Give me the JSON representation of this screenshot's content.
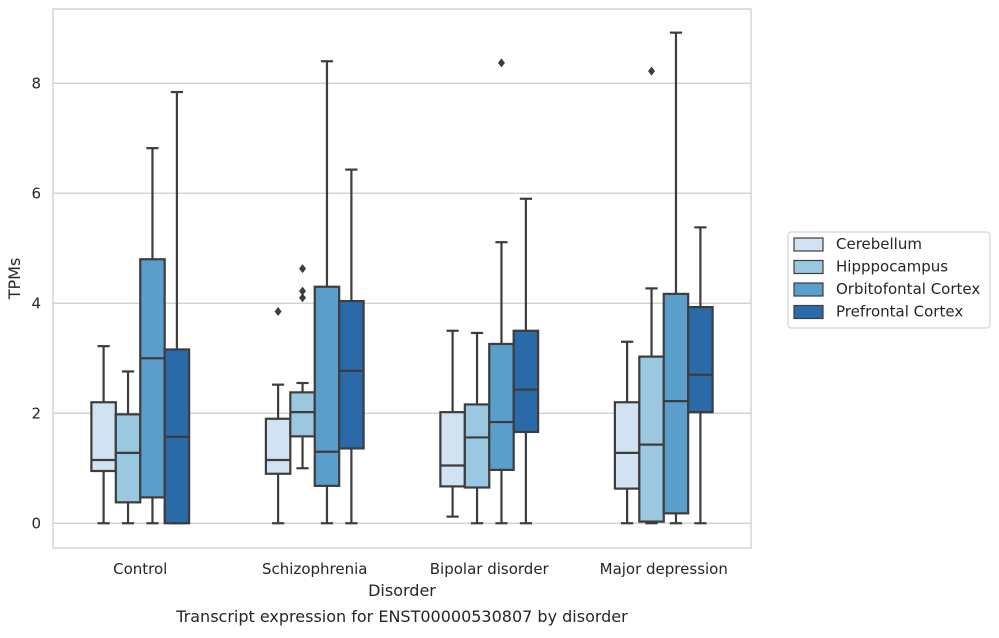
{
  "chart_data": {
    "type": "boxplot",
    "xlabel": "Disorder",
    "ylabel": "TPMs",
    "caption": "Transcript expression for ENST00000530807 by disorder",
    "categories": [
      "Control",
      "Schizophrenia",
      "Bipolar disorder",
      "Major depression"
    ],
    "ylim": [
      -0.45,
      9.35
    ],
    "yticks": [
      0,
      2,
      4,
      6,
      8
    ],
    "grid": "horizontal",
    "legend_position": "right",
    "series": [
      {
        "name": "Cerebellum",
        "color": "#d1e2f2",
        "boxes": [
          {
            "whislo": 0.0,
            "q1": 0.95,
            "med": 1.15,
            "q3": 2.2,
            "whishi": 3.22,
            "fliers": []
          },
          {
            "whislo": 0.0,
            "q1": 0.9,
            "med": 1.15,
            "q3": 1.9,
            "whishi": 2.52,
            "fliers": [
              3.85
            ]
          },
          {
            "whislo": 0.12,
            "q1": 0.67,
            "med": 1.05,
            "q3": 2.02,
            "whishi": 3.5,
            "fliers": []
          },
          {
            "whislo": 0.0,
            "q1": 0.63,
            "med": 1.28,
            "q3": 2.2,
            "whishi": 3.3,
            "fliers": []
          }
        ]
      },
      {
        "name": "Hipppocampus",
        "color": "#9ac8e0",
        "boxes": [
          {
            "whislo": 0.0,
            "q1": 0.38,
            "med": 1.28,
            "q3": 1.98,
            "whishi": 2.76,
            "fliers": []
          },
          {
            "whislo": 1.0,
            "q1": 1.58,
            "med": 2.02,
            "q3": 2.38,
            "whishi": 2.55,
            "fliers": [
              4.1,
              4.22,
              4.63
            ]
          },
          {
            "whislo": 0.0,
            "q1": 0.65,
            "med": 1.56,
            "q3": 2.16,
            "whishi": 3.46,
            "fliers": []
          },
          {
            "whislo": 0.0,
            "q1": 0.03,
            "med": 1.43,
            "q3": 3.03,
            "whishi": 4.27,
            "fliers": [
              8.22
            ]
          }
        ]
      },
      {
        "name": "Orbitofontal Cortex",
        "color": "#5a9ecc",
        "boxes": [
          {
            "whislo": 0.0,
            "q1": 0.47,
            "med": 3.0,
            "q3": 4.8,
            "whishi": 6.82,
            "fliers": []
          },
          {
            "whislo": 0.0,
            "q1": 0.68,
            "med": 1.3,
            "q3": 4.3,
            "whishi": 8.4,
            "fliers": []
          },
          {
            "whislo": 0.0,
            "q1": 0.97,
            "med": 1.84,
            "q3": 3.26,
            "whishi": 5.11,
            "fliers": [
              8.37
            ]
          },
          {
            "whislo": 0.0,
            "q1": 0.18,
            "med": 2.22,
            "q3": 4.17,
            "whishi": 8.92,
            "fliers": []
          }
        ]
      },
      {
        "name": "Prefrontal Cortex",
        "color": "#2a6aa8",
        "boxes": [
          {
            "whislo": 0.0,
            "q1": 0.0,
            "med": 1.57,
            "q3": 3.16,
            "whishi": 7.84,
            "fliers": []
          },
          {
            "whislo": 0.0,
            "q1": 1.36,
            "med": 2.77,
            "q3": 4.04,
            "whishi": 6.43,
            "fliers": []
          },
          {
            "whislo": 0.0,
            "q1": 1.66,
            "med": 2.43,
            "q3": 3.5,
            "whishi": 5.9,
            "fliers": []
          },
          {
            "whislo": 0.0,
            "q1": 2.02,
            "med": 2.7,
            "q3": 3.93,
            "whishi": 5.38,
            "fliers": []
          }
        ]
      }
    ]
  }
}
